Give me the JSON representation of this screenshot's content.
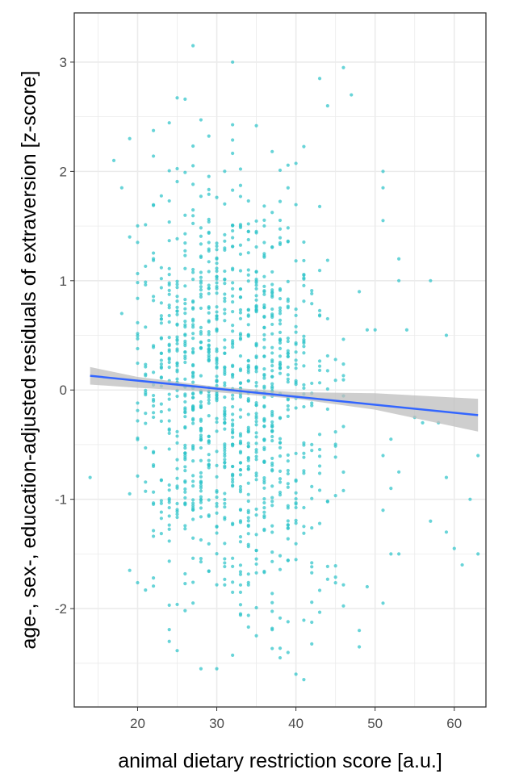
{
  "chart_data": {
    "type": "scatter",
    "xlabel": "animal dietary restriction score [a.u.]",
    "ylabel": "age-, sex-, education-adjusted residuals of extraversion [z-score]",
    "xlim": [
      12,
      64
    ],
    "ylim": [
      -2.9,
      3.45
    ],
    "x_ticks": [
      20,
      30,
      40,
      50,
      60
    ],
    "y_ticks": [
      -2,
      -1,
      0,
      1,
      2,
      3
    ],
    "grid": true,
    "colors": {
      "points": "#2ec4c9",
      "fit_line": "#3366ff",
      "confidence_band": "#bdbdbd",
      "grid": "#ebebeb",
      "panel_border": "#333333"
    },
    "core_range": {
      "x": [
        20,
        46
      ],
      "y_sd": 0.95
    },
    "outlier_points": [
      [
        14,
        -0.8
      ],
      [
        17,
        2.1
      ],
      [
        18,
        1.85
      ],
      [
        19,
        2.3
      ],
      [
        19,
        1.4
      ],
      [
        18,
        0.7
      ],
      [
        19,
        -0.95
      ],
      [
        19,
        -1.65
      ],
      [
        48,
        0.9
      ],
      [
        49,
        0.55
      ],
      [
        49,
        -1.8
      ],
      [
        48,
        -2.2
      ],
      [
        48,
        -2.35
      ],
      [
        50,
        0.55
      ],
      [
        51,
        2.0
      ],
      [
        51,
        1.85
      ],
      [
        51,
        1.55
      ],
      [
        51,
        -0.6
      ],
      [
        51,
        -1.1
      ],
      [
        51,
        -1.95
      ],
      [
        52,
        -0.45
      ],
      [
        52,
        -0.9
      ],
      [
        52,
        -1.5
      ],
      [
        53,
        1.2
      ],
      [
        53,
        1.0
      ],
      [
        53,
        -0.75
      ],
      [
        53,
        -1.5
      ],
      [
        54,
        0.55
      ],
      [
        55,
        -0.25
      ],
      [
        56,
        -0.3
      ],
      [
        57,
        1.0
      ],
      [
        57,
        -1.2
      ],
      [
        58,
        -0.3
      ],
      [
        59,
        0.5
      ],
      [
        59,
        -0.8
      ],
      [
        59,
        -1.3
      ],
      [
        60,
        -1.45
      ],
      [
        61,
        -1.6
      ],
      [
        62,
        -1.0
      ],
      [
        63,
        -0.6
      ],
      [
        63,
        -1.5
      ],
      [
        27,
        3.15
      ],
      [
        32,
        3.0
      ],
      [
        46,
        2.95
      ],
      [
        43,
        2.85
      ],
      [
        44,
        2.6
      ],
      [
        47,
        2.7
      ],
      [
        30,
        -2.55
      ],
      [
        40,
        -2.6
      ],
      [
        41,
        -2.65
      ],
      [
        38,
        -2.45
      ],
      [
        28,
        -2.55
      ],
      [
        24,
        -2.3
      ]
    ],
    "fit_line": {
      "x": [
        14,
        63
      ],
      "y": [
        0.13,
        -0.23
      ]
    },
    "confidence_band": {
      "x": [
        14,
        20,
        30,
        40,
        50,
        63
      ],
      "lower": [
        0.05,
        0.02,
        -0.02,
        -0.08,
        -0.18,
        -0.38
      ],
      "upper": [
        0.21,
        0.12,
        0.03,
        -0.02,
        -0.03,
        -0.08
      ]
    }
  }
}
